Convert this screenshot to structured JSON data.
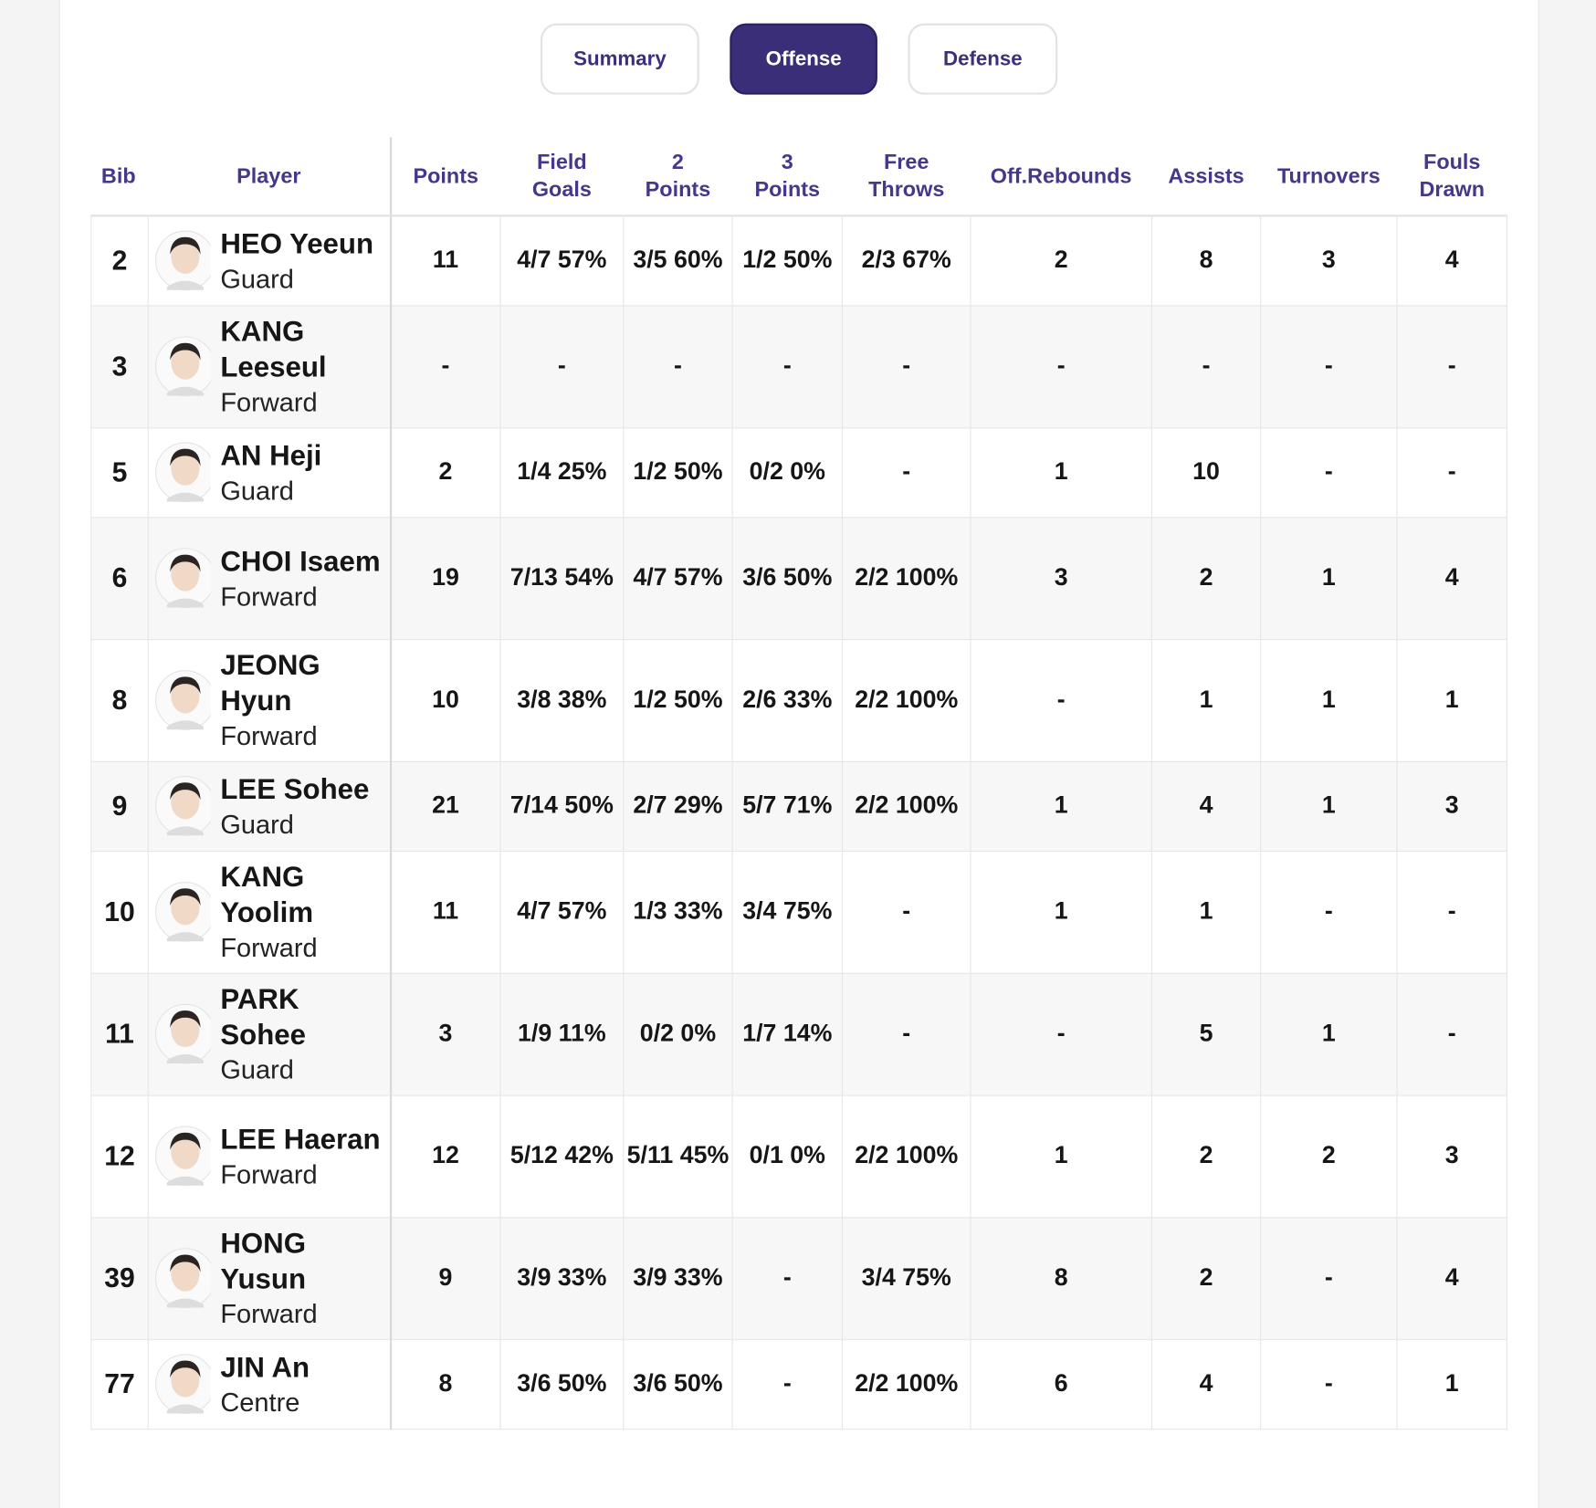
{
  "tabs": [
    "Summary",
    "Offense",
    "Defense"
  ],
  "table": {
    "headers": [
      "Bib",
      "Player",
      "Points",
      "Field Goals",
      "2 Points",
      "3 Points",
      "Free Throws",
      "Off.Rebounds",
      "Assists",
      "Turnovers",
      "Fouls Drawn"
    ],
    "rows": [
      {
        "bib": "2",
        "name": "HEO Yeeun",
        "position": "Guard",
        "stats": [
          "11",
          "4/7 57%",
          "3/5 60%",
          "1/2 50%",
          "2/3 67%",
          "2",
          "8",
          "3",
          "4"
        ]
      },
      {
        "bib": "3",
        "name": "KANG Leeseul",
        "position": "Forward",
        "stats": [
          "-",
          "-",
          "-",
          "-",
          "-",
          "-",
          "-",
          "-",
          "-"
        ]
      },
      {
        "bib": "5",
        "name": "AN Heji",
        "position": "Guard",
        "stats": [
          "2",
          "1/4 25%",
          "1/2 50%",
          "0/2 0%",
          "-",
          "1",
          "10",
          "-",
          "-"
        ]
      },
      {
        "bib": "6",
        "name": "CHOI Isaem",
        "position": "Forward",
        "stats": [
          "19",
          "7/13 54%",
          "4/7 57%",
          "3/6 50%",
          "2/2 100%",
          "3",
          "2",
          "1",
          "4"
        ]
      },
      {
        "bib": "8",
        "name": "JEONG Hyun",
        "position": "Forward",
        "stats": [
          "10",
          "3/8 38%",
          "1/2 50%",
          "2/6 33%",
          "2/2 100%",
          "-",
          "1",
          "1",
          "1"
        ]
      },
      {
        "bib": "9",
        "name": "LEE Sohee",
        "position": "Guard",
        "stats": [
          "21",
          "7/14 50%",
          "2/7 29%",
          "5/7 71%",
          "2/2 100%",
          "1",
          "4",
          "1",
          "3"
        ]
      },
      {
        "bib": "10",
        "name": "KANG Yoolim",
        "position": "Forward",
        "stats": [
          "11",
          "4/7 57%",
          "1/3 33%",
          "3/4 75%",
          "-",
          "1",
          "1",
          "-",
          "-"
        ]
      },
      {
        "bib": "11",
        "name": "PARK Sohee",
        "position": "Guard",
        "stats": [
          "3",
          "1/9 11%",
          "0/2 0%",
          "1/7 14%",
          "-",
          "-",
          "5",
          "1",
          "-"
        ]
      },
      {
        "bib": "12",
        "name": "LEE Haeran",
        "position": "Forward",
        "stats": [
          "12",
          "5/12 42%",
          "5/11 45%",
          "0/1 0%",
          "2/2 100%",
          "1",
          "2",
          "2",
          "3"
        ]
      },
      {
        "bib": "39",
        "name": "HONG Yusun",
        "position": "Forward",
        "stats": [
          "9",
          "3/9 33%",
          "3/9 33%",
          "-",
          "3/4 75%",
          "8",
          "2",
          "-",
          "4"
        ]
      },
      {
        "bib": "77",
        "name": "JIN An",
        "position": "Centre",
        "stats": [
          "8",
          "3/6 50%",
          "3/6 50%",
          "-",
          "2/2 100%",
          "6",
          "4",
          "-",
          "1"
        ]
      }
    ]
  }
}
